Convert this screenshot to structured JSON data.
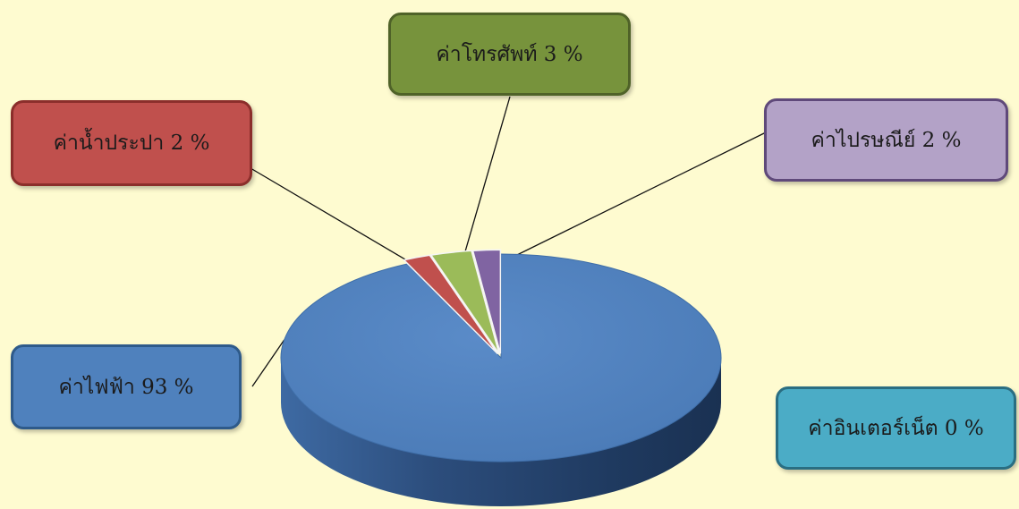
{
  "chart_data": {
    "type": "pie",
    "slices": [
      {
        "label": "ค่าไฟฟ้า 93 %",
        "value": 93,
        "color": "#4f81bd"
      },
      {
        "label": "ค่าน้ำประปา 2 %",
        "value": 2,
        "color": "#c0504d"
      },
      {
        "label": "ค่าโทรศัพท์ 3 %",
        "value": 3,
        "color": "#9bbb59"
      },
      {
        "label": "ค่าไปรษณีย์ 2 %",
        "value": 2,
        "color": "#8064a2"
      },
      {
        "label": "ค่าอินเตอร์เน็ต 0 %",
        "value": 0,
        "color": "#4bacc6"
      }
    ]
  }
}
